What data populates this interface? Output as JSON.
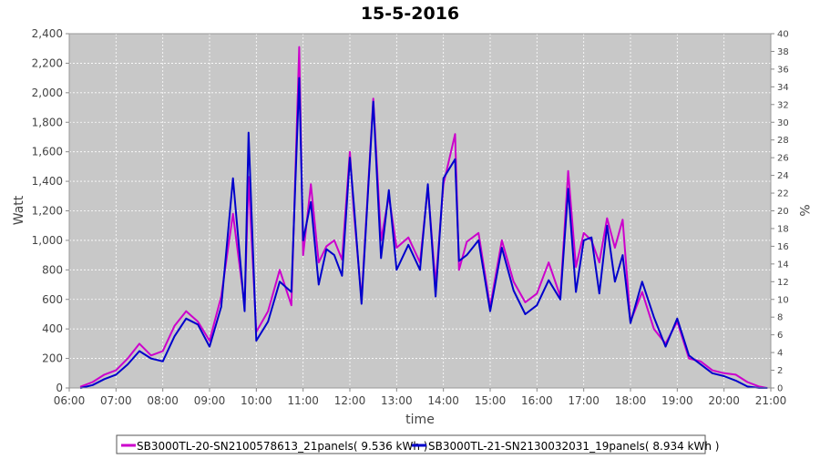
{
  "chart_data": {
    "type": "line",
    "title": "15-5-2016",
    "xlabel": "time",
    "ylabel": "Watt",
    "y2label": "%",
    "x_ticks": [
      "06:00",
      "07:00",
      "08:00",
      "09:00",
      "10:00",
      "11:00",
      "12:00",
      "13:00",
      "14:00",
      "15:00",
      "16:00",
      "17:00",
      "18:00",
      "19:00",
      "20:00",
      "21:00"
    ],
    "y_ticks": [
      "0",
      "200",
      "400",
      "600",
      "800",
      "1,000",
      "1,200",
      "1,400",
      "1,600",
      "1,800",
      "2,000",
      "2,200",
      "2,400"
    ],
    "y2_ticks": [
      "0",
      "2",
      "4",
      "6",
      "8",
      "10",
      "12",
      "14",
      "16",
      "18",
      "20",
      "22",
      "24",
      "26",
      "28",
      "30",
      "32",
      "34",
      "36",
      "38",
      "40"
    ],
    "xlim": [
      "06:00",
      "21:00"
    ],
    "ylim": [
      0,
      2400
    ],
    "y2lim": [
      0,
      40
    ],
    "grid": true,
    "legend_position": "bottom",
    "colors": {
      "plot_background": "#c8c8c8",
      "grid": "#ffffff",
      "series1": "#cc00cc",
      "series2": "#0000cc"
    },
    "series": [
      {
        "name": "SB3000TL-20-SN2100578613_21panels( 9.536 kWh )",
        "color": "#cc00cc",
        "x": [
          "06:15",
          "06:30",
          "06:45",
          "07:00",
          "07:15",
          "07:30",
          "07:45",
          "08:00",
          "08:15",
          "08:30",
          "08:45",
          "09:00",
          "09:15",
          "09:30",
          "09:45",
          "09:50",
          "10:00",
          "10:15",
          "10:30",
          "10:45",
          "10:55",
          "11:00",
          "11:10",
          "11:20",
          "11:30",
          "11:40",
          "11:50",
          "12:00",
          "12:05",
          "12:15",
          "12:30",
          "12:40",
          "12:50",
          "13:00",
          "13:15",
          "13:30",
          "13:40",
          "13:50",
          "14:00",
          "14:15",
          "14:20",
          "14:30",
          "14:45",
          "15:00",
          "15:15",
          "15:30",
          "15:45",
          "16:00",
          "16:15",
          "16:30",
          "16:40",
          "16:50",
          "17:00",
          "17:10",
          "17:20",
          "17:30",
          "17:40",
          "17:50",
          "18:00",
          "18:15",
          "18:30",
          "18:45",
          "19:00",
          "19:15",
          "19:30",
          "19:45",
          "20:00",
          "20:15",
          "20:30",
          "20:45",
          "20:55"
        ],
        "values": [
          10,
          40,
          90,
          120,
          200,
          300,
          220,
          250,
          420,
          520,
          450,
          320,
          620,
          1180,
          560,
          1430,
          380,
          520,
          800,
          560,
          2310,
          900,
          1380,
          850,
          960,
          1000,
          870,
          1600,
          1200,
          600,
          1960,
          1000,
          1300,
          950,
          1020,
          850,
          1360,
          700,
          1380,
          1720,
          800,
          990,
          1050,
          550,
          1000,
          720,
          580,
          640,
          850,
          620,
          1470,
          820,
          1050,
          1000,
          850,
          1150,
          950,
          1140,
          450,
          650,
          400,
          300,
          450,
          200,
          180,
          120,
          100,
          90,
          40,
          10,
          0
        ]
      },
      {
        "name": "SB3000TL-21-SN2130032031_19panels( 8.934 kWh )",
        "color": "#0000cc",
        "x": [
          "06:15",
          "06:30",
          "06:45",
          "07:00",
          "07:15",
          "07:30",
          "07:45",
          "08:00",
          "08:15",
          "08:30",
          "08:45",
          "09:00",
          "09:15",
          "09:30",
          "09:45",
          "09:50",
          "10:00",
          "10:15",
          "10:30",
          "10:45",
          "10:55",
          "11:00",
          "11:10",
          "11:20",
          "11:30",
          "11:40",
          "11:50",
          "12:00",
          "12:05",
          "12:15",
          "12:30",
          "12:40",
          "12:50",
          "13:00",
          "13:15",
          "13:30",
          "13:40",
          "13:50",
          "14:00",
          "14:15",
          "14:20",
          "14:30",
          "14:45",
          "15:00",
          "15:15",
          "15:30",
          "15:45",
          "16:00",
          "16:15",
          "16:30",
          "16:40",
          "16:50",
          "17:00",
          "17:10",
          "17:20",
          "17:30",
          "17:40",
          "17:50",
          "18:00",
          "18:15",
          "18:30",
          "18:45",
          "19:00",
          "19:15",
          "19:30",
          "19:45",
          "20:00",
          "20:15",
          "20:30",
          "20:45",
          "20:55"
        ],
        "values": [
          0,
          20,
          60,
          90,
          160,
          250,
          200,
          180,
          350,
          470,
          430,
          280,
          550,
          1420,
          520,
          1730,
          320,
          450,
          720,
          650,
          2100,
          1000,
          1260,
          700,
          940,
          900,
          760,
          1560,
          1250,
          570,
          1940,
          880,
          1340,
          800,
          970,
          800,
          1380,
          620,
          1420,
          1550,
          860,
          900,
          1000,
          520,
          950,
          660,
          500,
          560,
          730,
          600,
          1350,
          650,
          1000,
          1020,
          640,
          1100,
          720,
          900,
          440,
          720,
          480,
          280,
          470,
          220,
          160,
          100,
          80,
          50,
          10,
          0,
          0
        ]
      }
    ]
  }
}
